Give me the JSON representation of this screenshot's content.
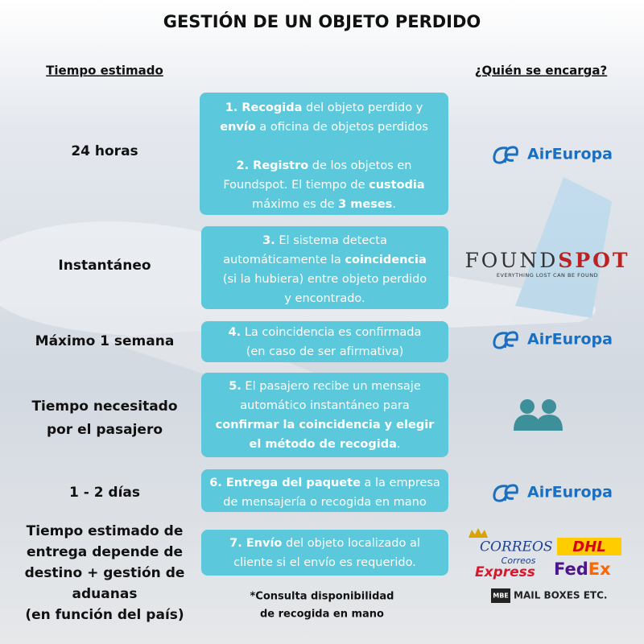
{
  "title": "GESTIÓN DE UN OBJETO PERDIDO",
  "headers": {
    "time": "Tiempo estimado",
    "who": "¿Quién se encarga?"
  },
  "rows": [
    {
      "time": [
        "24 horas"
      ],
      "steps": [
        [
          {
            "strong": "1. Recogida"
          },
          " del objeto perdido y"
        ],
        [
          {
            "strong": "envío"
          },
          " a oficina de objetos perdidos"
        ],
        [
          {
            "strong": "2. Registro"
          },
          " de los objetos en"
        ],
        [
          "Foundspot. El tiempo de ",
          {
            "strong": "custodia"
          }
        ],
        [
          "máximo es de ",
          {
            "strong": "3 meses"
          },
          "."
        ]
      ],
      "who": [
        "AirEuropa"
      ]
    },
    {
      "time": [
        "Instantáneo"
      ],
      "steps": [
        [
          {
            "strong": "3."
          },
          " El sistema detecta"
        ],
        [
          "automáticamente la ",
          {
            "strong": "coincidencia"
          }
        ],
        [
          "(si la hubiera) entre objeto perdido"
        ],
        [
          "y encontrado."
        ]
      ],
      "who": [
        "FOUND",
        "SPOT",
        "EVERYTHING LOST CAN BE FOUND"
      ]
    },
    {
      "time": [
        "Máximo 1 semana"
      ],
      "steps": [
        [
          {
            "strong": "4."
          },
          " La coincidencia es confirmada"
        ],
        [
          "(en caso de ser afirmativa)"
        ]
      ],
      "who": [
        "AirEuropa"
      ]
    },
    {
      "time": [
        "Tiempo necesitado",
        "por el pasajero"
      ],
      "steps": [
        [
          {
            "strong": "5."
          },
          " El pasajero recibe un mensaje"
        ],
        [
          "automático instantáneo para"
        ],
        [
          {
            "strong": "confirmar la coincidencia y elegir"
          }
        ],
        [
          {
            "strong": "el método de recogida"
          },
          "."
        ]
      ]
    },
    {
      "time": [
        "1 - 2 días"
      ],
      "steps": [
        [
          {
            "strong": "6. Entrega del paquete"
          },
          " a la empresa"
        ],
        [
          "de mensajería o recogida en mano"
        ]
      ],
      "who": [
        "AirEuropa"
      ]
    },
    {
      "time": [
        "Tiempo estimado de",
        "entrega depende de",
        "destino + gestión de",
        "aduanas",
        "(en función del país)"
      ],
      "steps": [
        [
          {
            "strong": "7. Envío"
          },
          " del objeto localizado al"
        ],
        [
          "cliente si el envío es requerido."
        ]
      ],
      "who": [
        "CORREOS",
        "DHL",
        "Correos",
        "Express",
        "Fed",
        "Ex",
        "MBE",
        "MAIL BOXES ETC."
      ]
    }
  ],
  "note": [
    "*Consulta disponibilidad",
    "de recogida en mano"
  ]
}
